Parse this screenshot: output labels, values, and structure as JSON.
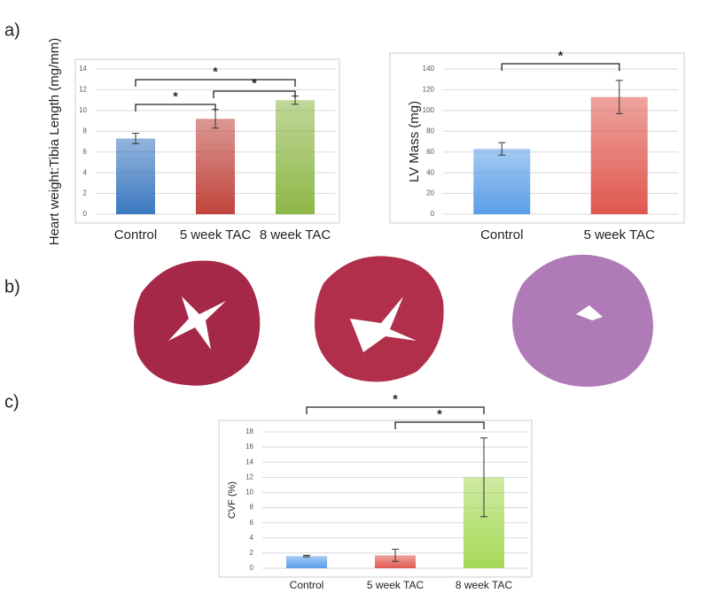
{
  "panel_labels": [
    "a)",
    "b)",
    "c)"
  ],
  "chart_data": [
    {
      "type": "bar",
      "ylabel": "Heart weight:Tibia Length (mg/mm)",
      "categories": [
        "Control",
        "5 week TAC",
        "8 week TAC"
      ],
      "values": [
        7.3,
        9.2,
        11.0
      ],
      "errors": [
        0.5,
        0.9,
        0.4
      ],
      "colors": [
        "#3b78c0",
        "#c0443c",
        "#8db747"
      ],
      "ylim": [
        0,
        14
      ],
      "yticks": [
        0,
        2,
        4,
        6,
        8,
        10,
        12,
        14
      ],
      "grid": true,
      "brackets": [
        {
          "between": [
            "Control",
            "8 week TAC"
          ],
          "label": "*"
        },
        {
          "between": [
            "5 week TAC",
            "8 week TAC"
          ],
          "label": "*"
        },
        {
          "between": [
            "Control",
            "5 week TAC"
          ],
          "label": "*"
        }
      ]
    },
    {
      "type": "bar",
      "ylabel": "LV Mass (mg)",
      "categories": [
        "Control",
        "5 week TAC"
      ],
      "values": [
        63,
        113
      ],
      "errors": [
        6,
        16
      ],
      "colors": [
        "#5a9ee8",
        "#e0584f"
      ],
      "ylim": [
        0,
        140
      ],
      "yticks": [
        0,
        20,
        40,
        60,
        80,
        100,
        120,
        140
      ],
      "grid": true,
      "brackets": [
        {
          "between": [
            "Control",
            "5 week TAC"
          ],
          "label": "*"
        }
      ]
    },
    {
      "type": "bar",
      "ylabel": "CVF (%)",
      "categories": [
        "Control",
        "5 week TAC",
        "8 week TAC"
      ],
      "values": [
        1.6,
        1.7,
        12.0
      ],
      "errors": [
        0.1,
        0.8,
        5.2
      ],
      "colors": [
        "#5a9ee8",
        "#e0584f",
        "#a6d957"
      ],
      "ylim": [
        0,
        18
      ],
      "yticks": [
        0,
        2,
        4,
        6,
        8,
        10,
        12,
        14,
        16,
        18
      ],
      "grid": true,
      "brackets": [
        {
          "between": [
            "Control",
            "8 week TAC"
          ],
          "label": "*"
        },
        {
          "between": [
            "5 week TAC",
            "8 week TAC"
          ],
          "label": "*"
        }
      ]
    }
  ]
}
